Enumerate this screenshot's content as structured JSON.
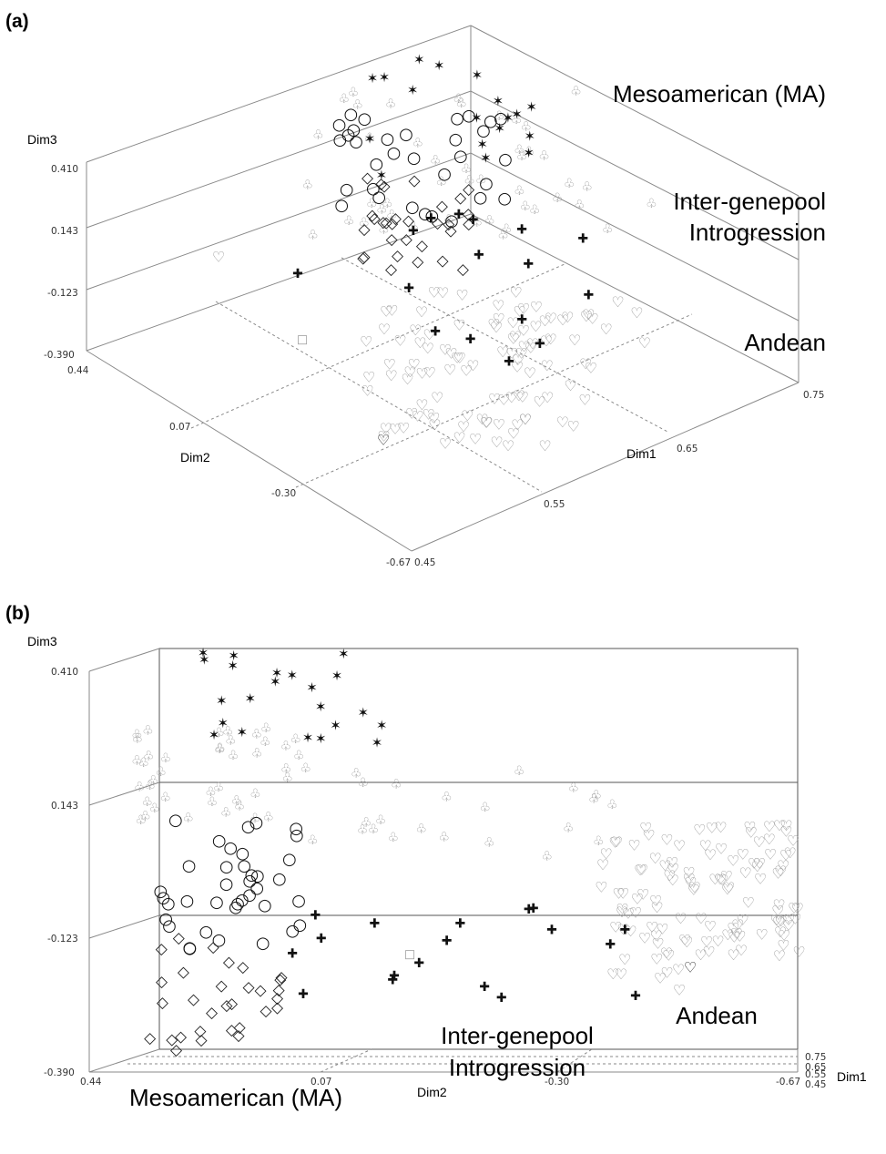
{
  "chart_data": [
    {
      "panel": "(a)",
      "type": "scatter",
      "view": "3d-perspective",
      "axes": {
        "dim1": {
          "label": "Dim1",
          "ticks": [
            "0.45",
            "0.55",
            "0.65",
            "0.75"
          ]
        },
        "dim2": {
          "label": "Dim2",
          "ticks": [
            "0.44",
            "0.07",
            "-0.30",
            "-0.67"
          ]
        },
        "dim3": {
          "label": "Dim3",
          "ticks": [
            "-0.390",
            "-0.123",
            "0.143",
            "0.410"
          ]
        }
      },
      "region_labels": [
        "Mesoamerican (MA)",
        "Inter-genepool",
        "Introgression",
        "Andean"
      ],
      "groups": [
        {
          "marker": "star",
          "color": "#111111"
        },
        {
          "marker": "club",
          "color": "#9a9a9a"
        },
        {
          "marker": "circle",
          "color": "#111111"
        },
        {
          "marker": "diamond",
          "color": "#222222"
        },
        {
          "marker": "cross",
          "color": "#111111"
        },
        {
          "marker": "heart",
          "color": "#9a9a9a"
        }
      ]
    },
    {
      "panel": "(b)",
      "type": "scatter",
      "view": "3d-side (Dim2 vs Dim3)",
      "axes": {
        "dim1": {
          "label": "Dim1",
          "ticks": [
            "0.75",
            "0.65",
            "0.55",
            "0.45"
          ]
        },
        "dim2": {
          "label": "Dim2",
          "ticks": [
            "0.44",
            "0.07",
            "-0.30",
            "-0.67"
          ]
        },
        "dim3": {
          "label": "Dim3",
          "ticks": [
            "0.410",
            "0.143",
            "-0.123",
            "-0.390"
          ]
        }
      },
      "region_labels": [
        "Mesoamerican (MA)",
        "Inter-genepool",
        "Introgression",
        "Andean"
      ],
      "groups": [
        {
          "marker": "star",
          "color": "#111111"
        },
        {
          "marker": "club",
          "color": "#9a9a9a"
        },
        {
          "marker": "circle",
          "color": "#111111"
        },
        {
          "marker": "diamond",
          "color": "#222222"
        },
        {
          "marker": "cross",
          "color": "#111111"
        },
        {
          "marker": "heart",
          "color": "#9a9a9a"
        }
      ]
    }
  ]
}
